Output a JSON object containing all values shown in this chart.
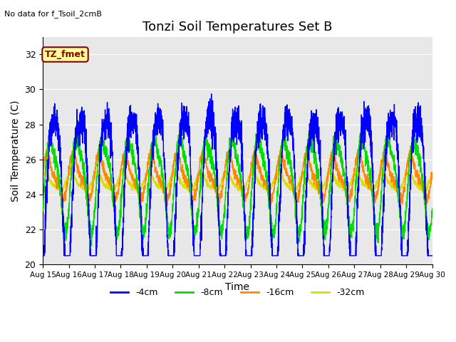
{
  "title": "Tonzi Soil Temperatures Set B",
  "subtitle": "No data for f_Tsoil_2cmB",
  "xlabel": "Time",
  "ylabel": "Soil Temperature (C)",
  "ylim": [
    20,
    33
  ],
  "yticks": [
    20,
    22,
    24,
    26,
    28,
    30,
    32
  ],
  "annotation_label": "TZ_fmet",
  "annotation_color": "#8B0000",
  "annotation_bg": "#ffff99",
  "bg_color": "#e8e8e8",
  "line_colors": [
    "#0000ff",
    "#00dd00",
    "#ff8800",
    "#dddd00"
  ],
  "legend_labels": [
    "-4cm",
    "-8cm",
    "-16cm",
    "-32cm"
  ],
  "figsize": [
    6.4,
    4.8
  ],
  "dpi": 100
}
